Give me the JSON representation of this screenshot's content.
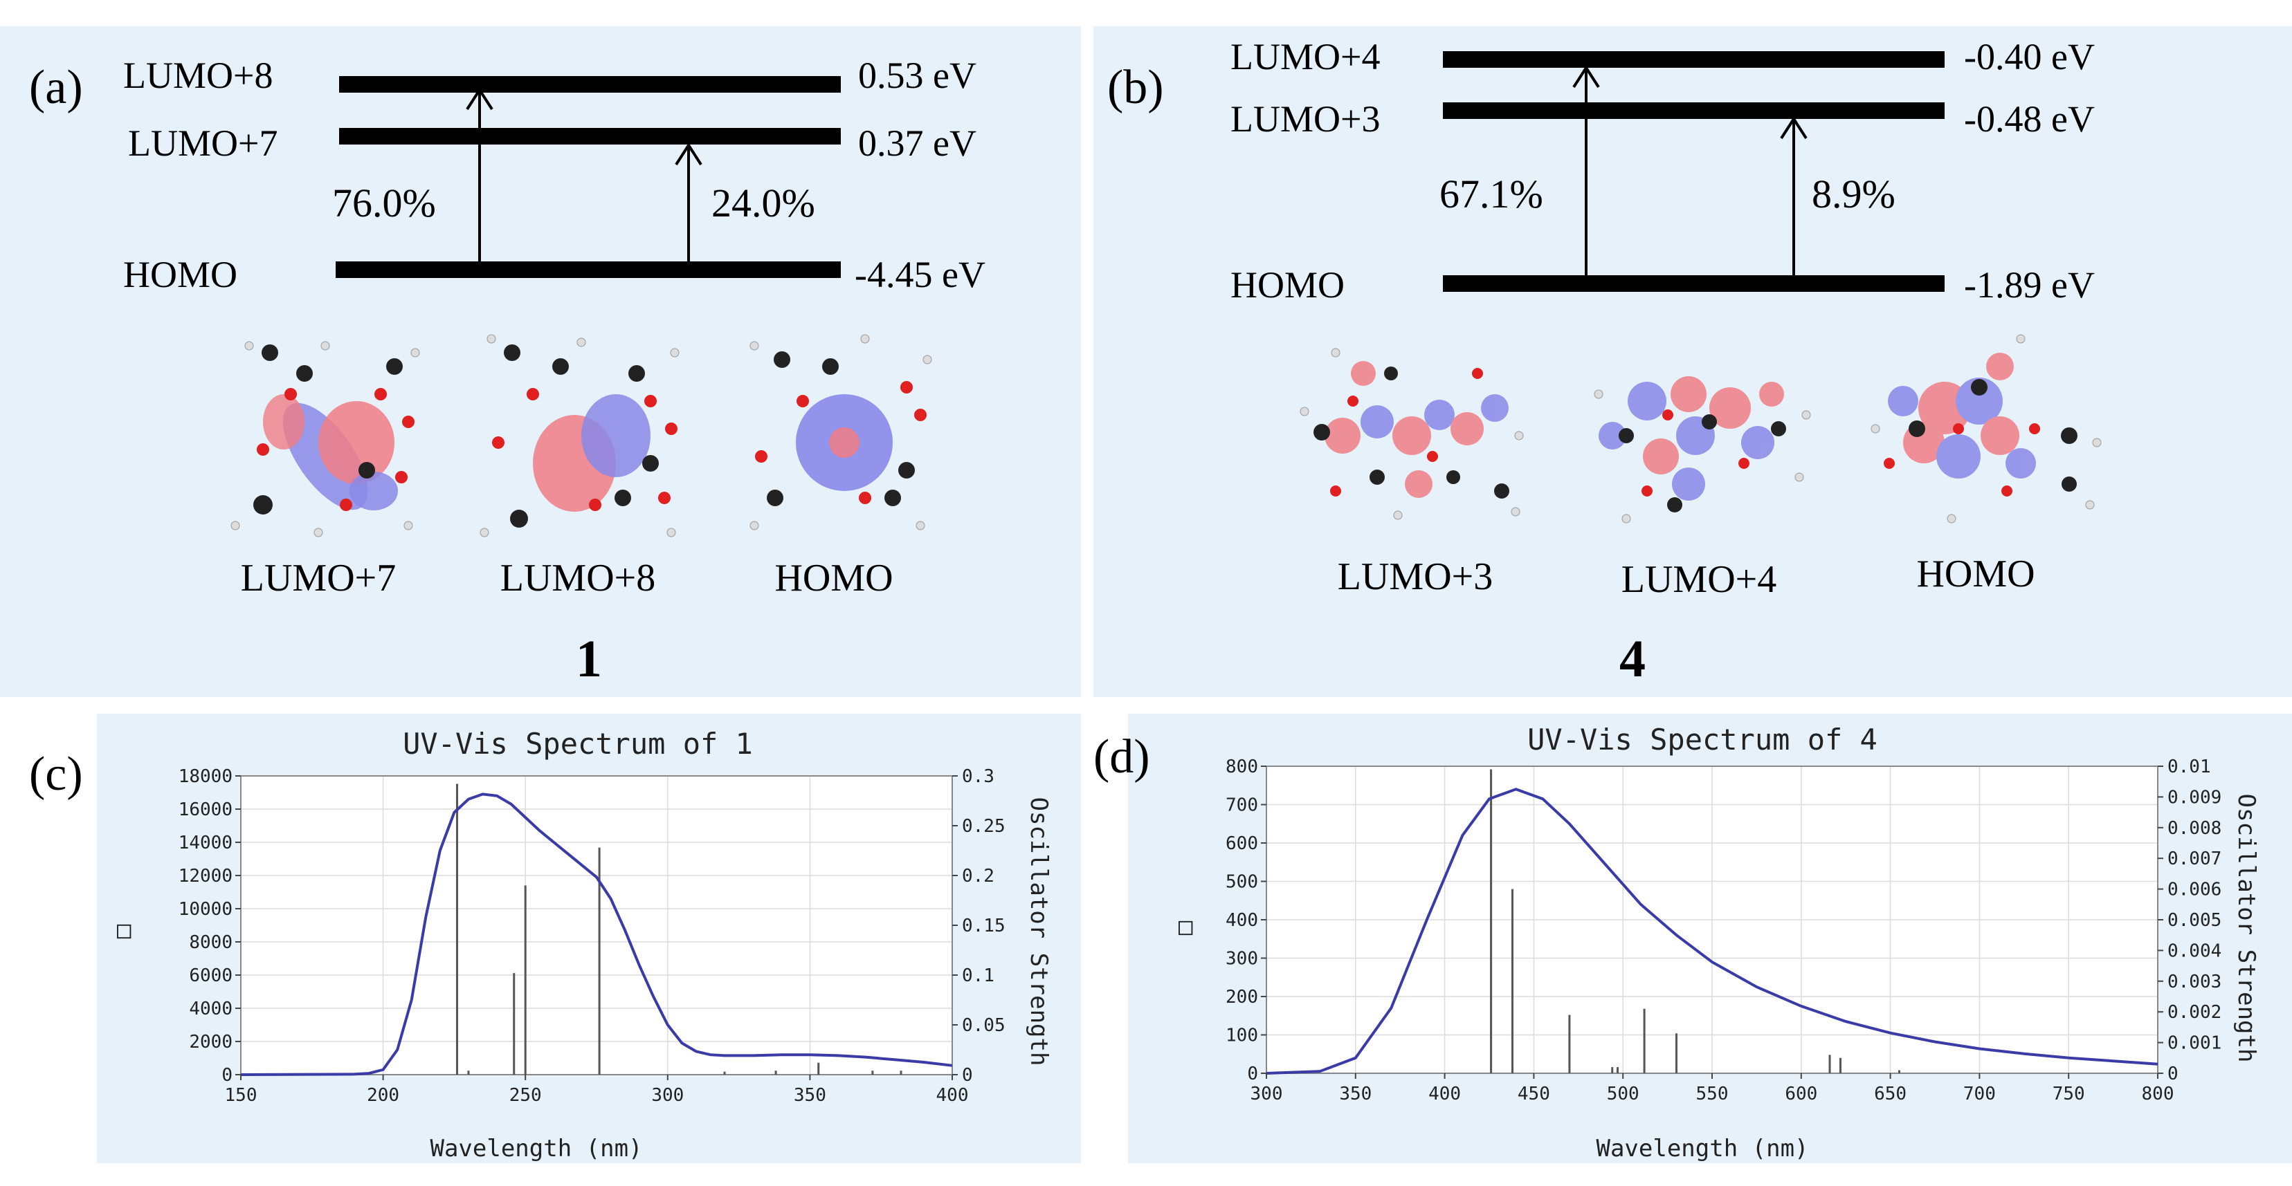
{
  "panel_a": {
    "label": "(a)",
    "levels": [
      {
        "name": "LUMO+8",
        "energy": "0.53 eV"
      },
      {
        "name": "LUMO+7",
        "energy": "0.37 eV"
      },
      {
        "name": "HOMO",
        "energy": "-4.45 eV"
      }
    ],
    "transitions": [
      "76.0%",
      "24.0%"
    ],
    "orbital_captions": [
      "LUMO+7",
      "LUMO+8",
      "HOMO"
    ],
    "compound": "1"
  },
  "panel_b": {
    "label": "(b)",
    "levels": [
      {
        "name": "LUMO+4",
        "energy": "-0.40 eV"
      },
      {
        "name": "LUMO+3",
        "energy": "-0.48 eV"
      },
      {
        "name": "HOMO",
        "energy": "-1.89 eV"
      }
    ],
    "transitions": [
      "67.1%",
      "8.9%"
    ],
    "orbital_captions": [
      "LUMO+3",
      "LUMO+4",
      "HOMO"
    ],
    "compound": "4"
  },
  "panel_c_label": "(c)",
  "panel_d_label": "(d)",
  "colors": {
    "background": "#e6f1f9",
    "curve": "#3b3ba8",
    "sticks": "#555555",
    "positive_lobe": "#f07d86",
    "negative_lobe": "#8888e8"
  },
  "chart_data": [
    {
      "type": "line",
      "title": "UV-Vis Spectrum of 1",
      "xlabel": "Wavelength (nm)",
      "ylabel": "□",
      "y2label": "Oscillator Strength",
      "xlim": [
        150,
        400
      ],
      "ylim": [
        0,
        18000
      ],
      "y2lim": [
        0,
        0.3
      ],
      "xticks": [
        150,
        200,
        250,
        300,
        350,
        400
      ],
      "yticks": [
        0,
        2000,
        4000,
        6000,
        8000,
        10000,
        12000,
        14000,
        16000,
        18000
      ],
      "y2ticks": [
        "0",
        "0.05",
        "0.1",
        "0.15",
        "0.2",
        "0.25",
        "0.3"
      ],
      "curve": {
        "x": [
          150,
          190,
          195,
          200,
          205,
          210,
          215,
          220,
          225,
          230,
          235,
          240,
          245,
          250,
          255,
          260,
          265,
          270,
          275,
          280,
          285,
          290,
          295,
          300,
          305,
          310,
          315,
          320,
          330,
          340,
          350,
          360,
          370,
          380,
          390,
          400
        ],
        "y": [
          0,
          30,
          80,
          300,
          1500,
          4500,
          9500,
          13500,
          15800,
          16600,
          16900,
          16800,
          16300,
          15500,
          14700,
          14000,
          13300,
          12600,
          11900,
          10600,
          8700,
          6600,
          4700,
          3000,
          1900,
          1400,
          1200,
          1150,
          1150,
          1200,
          1200,
          1150,
          1050,
          900,
          750,
          550
        ]
      },
      "sticks": {
        "x": [
          226,
          230,
          246,
          250,
          276,
          320,
          338,
          353,
          372,
          382
        ],
        "y": [
          0.292,
          0.004,
          0.102,
          0.19,
          0.228,
          0.003,
          0.004,
          0.012,
          0.004,
          0.004
        ]
      }
    },
    {
      "type": "line",
      "title": "UV-Vis Spectrum of 4",
      "xlabel": "Wavelength (nm)",
      "ylabel": "□",
      "y2label": "Oscillator Strength",
      "xlim": [
        300,
        800
      ],
      "ylim": [
        0,
        800
      ],
      "y2lim": [
        0,
        0.01
      ],
      "xticks": [
        300,
        350,
        400,
        450,
        500,
        550,
        600,
        650,
        700,
        750,
        800
      ],
      "yticks": [
        0,
        100,
        200,
        300,
        400,
        500,
        600,
        700,
        800
      ],
      "y2ticks": [
        "0",
        "0.001",
        "0.002",
        "0.003",
        "0.004",
        "0.005",
        "0.006",
        "0.007",
        "0.008",
        "0.009",
        "0.01"
      ],
      "curve": {
        "x": [
          300,
          330,
          350,
          370,
          390,
          410,
          425,
          440,
          455,
          470,
          490,
          510,
          530,
          550,
          575,
          600,
          625,
          650,
          675,
          700,
          725,
          750,
          775,
          800
        ],
        "y": [
          0,
          5,
          40,
          170,
          400,
          620,
          715,
          740,
          715,
          650,
          545,
          440,
          360,
          290,
          225,
          175,
          135,
          105,
          82,
          64,
          51,
          40,
          32,
          24
        ]
      },
      "sticks": {
        "x": [
          426,
          438,
          470,
          494,
          497,
          512,
          530,
          616,
          622,
          655
        ],
        "y": [
          0.0099,
          0.006,
          0.0019,
          0.0002,
          0.0002,
          0.0021,
          0.0013,
          0.0006,
          0.0005,
          0.0001
        ]
      }
    }
  ]
}
